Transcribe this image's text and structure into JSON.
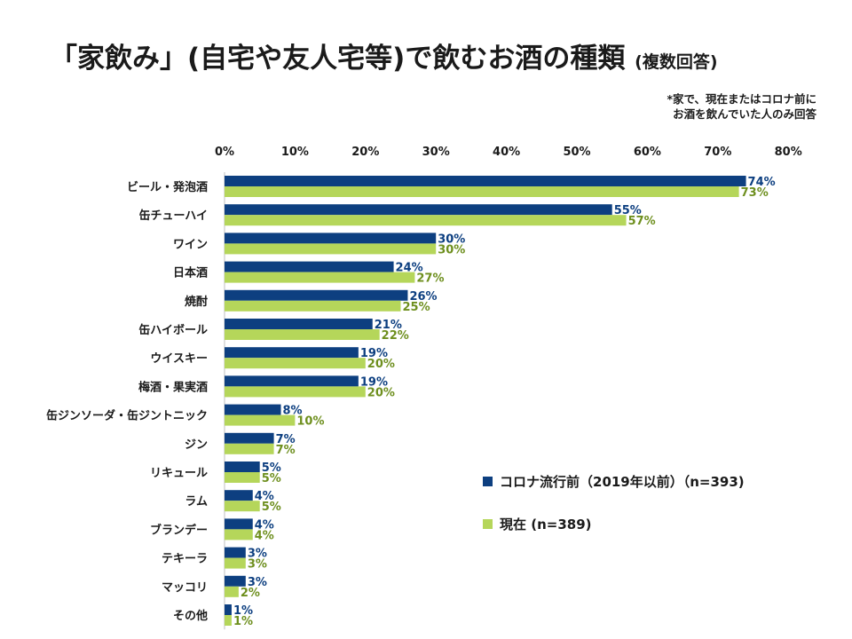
{
  "header": {
    "title": "「家飲み」(自宅や友人宅等)で飲むお酒の種類",
    "subtitle": "(複数回答)",
    "note_line1": "*家で、現在またはコロナ前に",
    "note_line2": "お酒を飲んでいた人のみ回答"
  },
  "chart_data": {
    "type": "bar",
    "orientation": "horizontal",
    "title": "「家飲み」(自宅や友人宅等)で飲むお酒の種類 (複数回答)",
    "xlabel": "",
    "ylabel": "",
    "xlim": [
      0,
      80
    ],
    "ticks": [
      "0%",
      "10%",
      "20%",
      "30%",
      "40%",
      "50%",
      "60%",
      "70%",
      "80%"
    ],
    "tick_values": [
      0,
      10,
      20,
      30,
      40,
      50,
      60,
      70,
      80
    ],
    "categories": [
      "ビール・発泡酒",
      "缶チューハイ",
      "ワイン",
      "日本酒",
      "焼酎",
      "缶ハイボール",
      "ウイスキー",
      "梅酒・果実酒",
      "缶ジンソーダ・缶ジントニック",
      "ジン",
      "リキュール",
      "ラム",
      "ブランデー",
      "テキーラ",
      "マッコリ",
      "その他"
    ],
    "series": [
      {
        "name": "コロナ流行前（2019年以前）（n=393)",
        "color": "#0d3f80",
        "values": [
          74,
          55,
          30,
          24,
          26,
          21,
          19,
          19,
          8,
          7,
          5,
          4,
          4,
          3,
          3,
          1
        ]
      },
      {
        "name": "現在 (n=389)",
        "color": "#b5d65a",
        "values": [
          73,
          57,
          30,
          27,
          25,
          22,
          20,
          20,
          10,
          7,
          5,
          5,
          4,
          3,
          2,
          1
        ]
      }
    ],
    "legend": "right-bottom",
    "grid": false
  }
}
